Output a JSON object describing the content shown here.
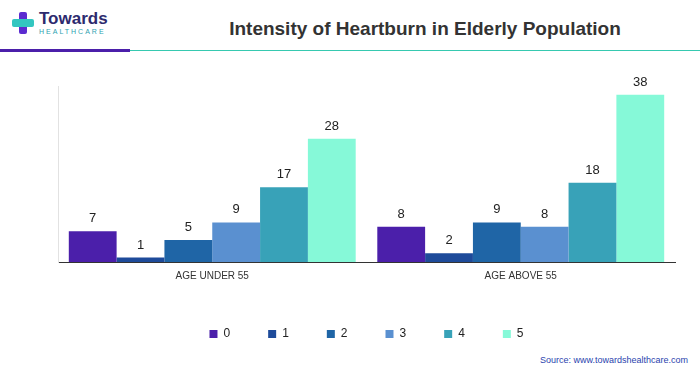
{
  "chart_data": {
    "type": "bar",
    "title": "Intensity of Heartburn in Elderly Population",
    "logo": [
      "Towards",
      "HEALTHCARE"
    ],
    "source": "Source: www.towardshealthcare.com",
    "categories": [
      "AGE UNDER 55",
      "AGE ABOVE 55"
    ],
    "series": [
      {
        "name": "0",
        "color": "#4b1faa",
        "values": [
          7,
          8
        ]
      },
      {
        "name": "1",
        "color": "#1e4b9a",
        "values": [
          1,
          2
        ]
      },
      {
        "name": "2",
        "color": "#1f65a6",
        "values": [
          5,
          9
        ]
      },
      {
        "name": "3",
        "color": "#5a90d0",
        "values": [
          9,
          8
        ]
      },
      {
        "name": "4",
        "color": "#38a2b8",
        "values": [
          17,
          18
        ]
      },
      {
        "name": "5",
        "color": "#86f9d8",
        "values": [
          28,
          38
        ]
      }
    ],
    "ylim": [
      0,
      40
    ],
    "grid": false,
    "legend": "bottom",
    "data_labels": true,
    "tick_labels": "x"
  }
}
